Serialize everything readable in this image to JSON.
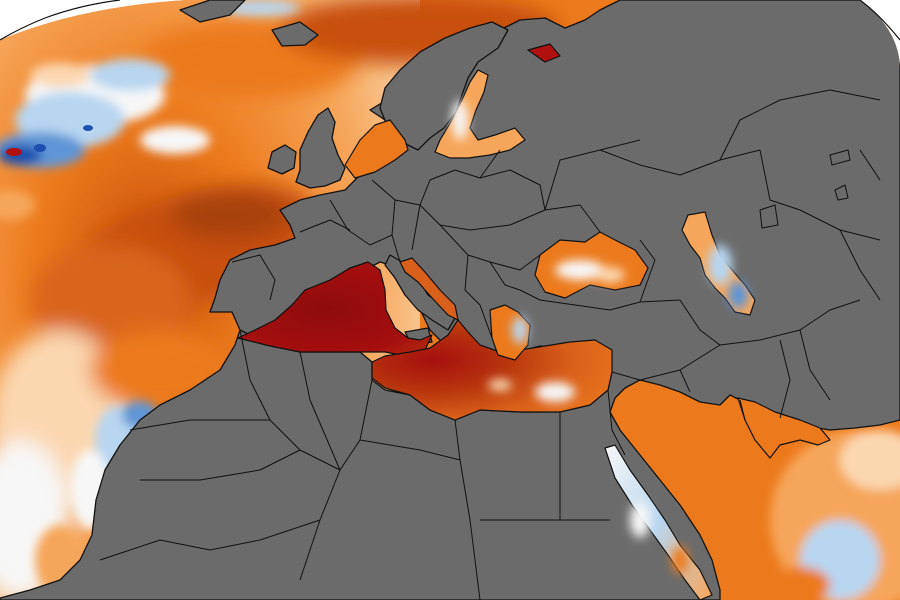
{
  "map": {
    "kind": "sea-surface-temperature-anomaly",
    "projection": "orthographic",
    "labels_shown": false,
    "colors": {
      "land": "#6b6b6b",
      "borders": "#1a1a1a",
      "space": "#ffffff",
      "extreme_warm": "#a50f0f",
      "very_warm": "#c8500d",
      "warm": "#ec7a1c",
      "mild_warm": "#f6a65a",
      "slight_warm": "#fbd7b0",
      "neutral": "#f7f7f7",
      "slight_cool": "#b8d6f0",
      "cool": "#5e95d6",
      "cold": "#1f4fb0"
    },
    "regions": [
      "north-atlantic",
      "western-mediterranean",
      "central-mediterranean",
      "eastern-mediterranean",
      "black-sea",
      "caspian-sea",
      "baltic-sea",
      "red-sea",
      "persian-gulf",
      "arabian-sea",
      "europe",
      "north-africa",
      "middle-east",
      "iberia",
      "scandinavia"
    ]
  }
}
